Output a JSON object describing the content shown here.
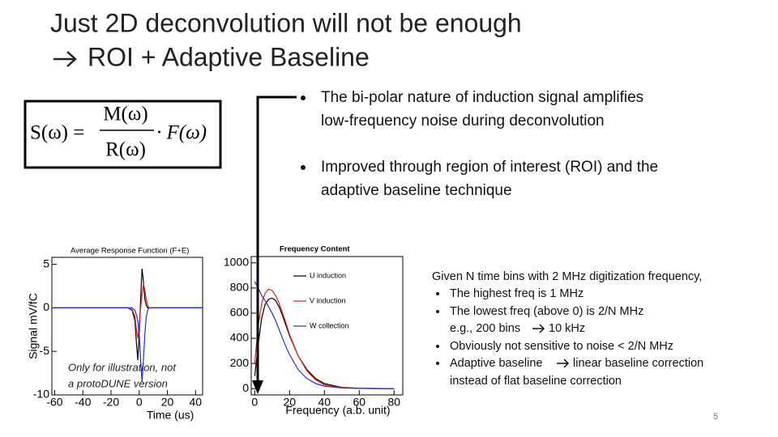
{
  "header": {
    "title": "Just 2D deconvolution will not be enough",
    "subtitle": "ROI + Adaptive Baseline"
  },
  "formula": {
    "lhs": "S(ω) =",
    "numerator": "M(ω)",
    "denominator": "R(ω)",
    "factor": "· F(ω)"
  },
  "bullets": [
    [
      "The bi-polar nature of induction signal amplifies",
      "low-frequency noise during deconvolution"
    ],
    [
      "Improved through region of interest (ROI) and the",
      "adaptive baseline technique"
    ]
  ],
  "notes": {
    "intro": "Given N time bins with 2 MHz digitization frequency,",
    "highest": "The highest freq is 1 MHz",
    "lowest": "The lowest freq (above 0) is  2/N MHz",
    "example": [
      "e.g., 200 bins",
      "10 kHz"
    ],
    "noise": "Obviously not sensitive to noise < 2/N MHz",
    "adaptive": [
      "Adaptive baseline",
      "linear baseline correction",
      "instead of flat baseline correction"
    ]
  },
  "page_number": "5",
  "chart_data": [
    {
      "type": "line",
      "title": "Average Response Function (F+E)",
      "x_label": "Time (us)",
      "y_label": "Signal mV/fC",
      "xlim": [
        -62,
        45
      ],
      "ylim": [
        -10,
        5.8
      ],
      "xticks": [
        -60,
        -40,
        -20,
        0,
        20,
        40
      ],
      "yticks": [
        -10,
        -5,
        0,
        5
      ],
      "annotation": [
        "Only for illustration, not",
        "a protoDUNE version"
      ],
      "x": [
        -60,
        -8,
        -5,
        -3,
        -2,
        -1,
        0,
        1,
        2,
        3,
        4,
        5,
        6,
        7,
        8,
        10,
        45
      ],
      "series": [
        {
          "color": "#000000",
          "values": [
            0,
            0,
            -0.3,
            -1.5,
            -4,
            -6,
            -3,
            1,
            4.5,
            3,
            1,
            0.3,
            0,
            0,
            0,
            0,
            0
          ]
        },
        {
          "color": "#e02020",
          "values": [
            0,
            0,
            -0.2,
            -1,
            -2.5,
            -3.5,
            -2,
            0,
            1.5,
            2.8,
            2,
            1,
            0.3,
            0,
            0,
            0,
            0
          ]
        },
        {
          "color": "#2030e0",
          "values": [
            0,
            0,
            0,
            -0.3,
            -0.8,
            -1.5,
            -3,
            -6,
            -8.5,
            -6,
            -3,
            -1,
            -0.3,
            0,
            0,
            0,
            0
          ]
        }
      ]
    },
    {
      "type": "line",
      "title": "Frequency Content",
      "x_label": "Frequency (a.b. unit)",
      "xlim": [
        -2,
        85
      ],
      "ylim": [
        -50,
        1050
      ],
      "xticks": [
        0,
        20,
        40,
        60,
        80
      ],
      "yticks": [
        0,
        200,
        400,
        600,
        800,
        1000
      ],
      "legend": "top-right",
      "x": [
        0,
        2,
        4,
        6,
        8,
        10,
        12,
        14,
        16,
        18,
        20,
        25,
        30,
        35,
        40,
        50,
        60,
        80
      ],
      "series": [
        {
          "name": "U induction",
          "color": "#000000",
          "values": [
            100,
            350,
            560,
            670,
            710,
            720,
            700,
            650,
            580,
            500,
            420,
            260,
            150,
            80,
            40,
            10,
            3,
            0
          ]
        },
        {
          "name": "V induction",
          "color": "#e02020",
          "values": [
            200,
            500,
            680,
            760,
            790,
            780,
            740,
            680,
            600,
            520,
            430,
            260,
            140,
            70,
            30,
            8,
            2,
            0
          ]
        },
        {
          "name": "W collection",
          "color": "#2030e0",
          "values": [
            850,
            800,
            740,
            700,
            650,
            600,
            540,
            470,
            400,
            330,
            270,
            150,
            80,
            40,
            20,
            5,
            2,
            0
          ]
        }
      ]
    }
  ]
}
